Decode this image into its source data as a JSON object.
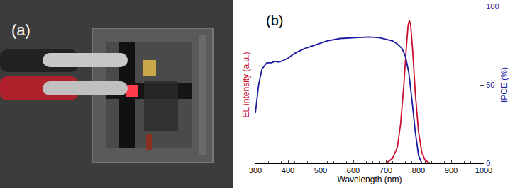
{
  "chart_data": {
    "type": "line",
    "x_label": "Wavelength (nm)",
    "y_label": "EL intensity (a.u.)",
    "y2_label": "IPCE (%)",
    "annotations": [
      "(b)"
    ],
    "xlim": [
      300,
      1000
    ],
    "xticks": [
      300,
      400,
      500,
      600,
      700,
      800,
      900,
      1000
    ],
    "ylim": [
      0,
      100
    ],
    "yticks": [],
    "y2lim": [
      0,
      100
    ],
    "y2ticks": [
      0,
      50,
      100
    ],
    "grid": false,
    "series": [
      {
        "color": "#c8102e",
        "axis": "y",
        "x": [
          300,
          700,
          720,
          735,
          745,
          755,
          762,
          768,
          772,
          776,
          782,
          790,
          800,
          810,
          820,
          835,
          1000
        ],
        "values": [
          0,
          0,
          3,
          10,
          25,
          50,
          72,
          88,
          91,
          88,
          72,
          45,
          20,
          7,
          2,
          0,
          0
        ]
      },
      {
        "color": "#1c1ca0",
        "axis": "y2",
        "x": [
          300,
          310,
          320,
          335,
          350,
          360,
          370,
          380,
          400,
          420,
          450,
          480,
          520,
          560,
          600,
          650,
          680,
          700,
          720,
          735,
          750,
          760,
          770,
          780,
          790,
          800,
          810,
          1000
        ],
        "values": [
          32,
          50,
          60,
          64,
          64,
          65,
          64.5,
          65,
          67,
          70,
          73,
          75,
          78,
          79.5,
          80,
          80.5,
          80,
          79,
          78,
          76,
          73,
          68,
          58,
          40,
          20,
          5,
          0,
          0
        ]
      }
    ]
  },
  "photo": {
    "label": "(a)"
  }
}
